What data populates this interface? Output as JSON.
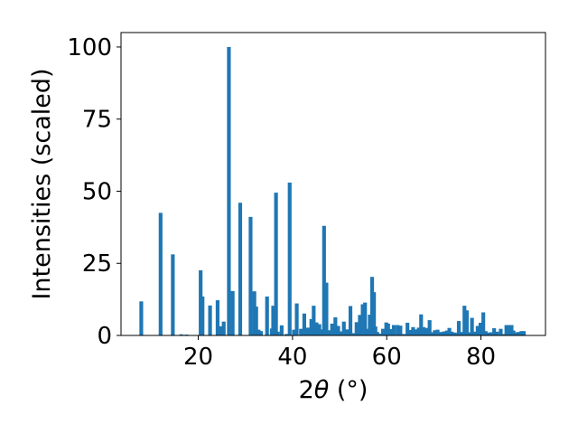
{
  "chart_data": {
    "type": "bar",
    "xlabel_prefix": "2",
    "xlabel_symbol": "θ",
    "xlabel_unit": " (°)",
    "ylabel": "Intensities (scaled)",
    "xlim": [
      3.6,
      93.7
    ],
    "ylim": [
      0,
      105
    ],
    "xticks": [
      20,
      40,
      60,
      80
    ],
    "yticks": [
      0,
      25,
      50,
      75,
      100
    ],
    "grid": false,
    "bar_color": "#1f77b4",
    "bar_width": 0.8,
    "x": [
      7.9,
      12.0,
      14.6,
      16.4,
      17.5,
      20.5,
      20.9,
      22.5,
      24.1,
      24.8,
      25.4,
      26.5,
      27.3,
      28.9,
      31.1,
      31.9,
      32.3,
      32.8,
      33.3,
      34.6,
      35.6,
      35.9,
      36.5,
      36.9,
      37.7,
      38.7,
      39.4,
      40.3,
      40.9,
      41.8,
      42.5,
      43.3,
      44.0,
      44.5,
      45.1,
      45.7,
      46.2,
      46.7,
      47.2,
      47.8,
      48.4,
      49.1,
      49.7,
      50.3,
      50.9,
      51.6,
      52.3,
      52.9,
      53.6,
      54.3,
      54.9,
      55.4,
      55.8,
      56.4,
      56.9,
      57.3,
      57.6,
      58.0,
      58.5,
      59.2,
      59.9,
      60.3,
      60.8,
      61.5,
      62.3,
      62.9,
      63.6,
      64.4,
      65.0,
      65.6,
      66.2,
      66.8,
      67.3,
      67.8,
      68.4,
      69.1,
      69.7,
      70.2,
      70.8,
      71.5,
      72.2,
      72.8,
      73.3,
      73.8,
      74.5,
      75.3,
      75.9,
      76.5,
      77.0,
      77.5,
      78.1,
      78.7,
      79.3,
      79.9,
      80.5,
      81.0,
      81.6,
      82.2,
      82.8,
      83.4,
      84.2,
      84.8,
      85.4,
      86.0,
      86.5,
      86.9,
      87.4,
      88.0,
      88.6,
      89.1
    ],
    "values": [
      11.8,
      42.5,
      28.1,
      0.4,
      0.3,
      22.6,
      13.5,
      10.4,
      12.2,
      3.2,
      4.8,
      100.0,
      15.4,
      46.0,
      41.1,
      15.3,
      10.0,
      2.0,
      1.5,
      13.5,
      2.4,
      10.3,
      49.5,
      1.3,
      3.5,
      0.5,
      53.0,
      2.0,
      11.1,
      2.3,
      7.6,
      2.7,
      5.7,
      10.3,
      4.5,
      3.9,
      2.1,
      38.0,
      18.3,
      1.8,
      4.1,
      6.3,
      3.3,
      1.4,
      4.8,
      2.1,
      10.2,
      0.8,
      4.6,
      7.1,
      10.8,
      11.4,
      2.3,
      7.2,
      20.3,
      15.0,
      3.1,
      1.2,
      0.6,
      2.3,
      4.5,
      4.1,
      2.2,
      3.6,
      3.6,
      3.4,
      0.5,
      4.4,
      1.9,
      2.9,
      2.1,
      2.7,
      7.3,
      2.9,
      2.6,
      5.3,
      1.1,
      1.8,
      2.0,
      1.2,
      1.4,
      1.7,
      2.6,
      1.3,
      1.0,
      5.0,
      1.2,
      10.3,
      8.7,
      1.1,
      6.1,
      1.3,
      3.3,
      4.4,
      8.0,
      1.5,
      1.0,
      1.1,
      2.5,
      1.3,
      2.3,
      0.5,
      3.6,
      3.6,
      3.6,
      1.7,
      1.1,
      1.2,
      1.5,
      1.5
    ]
  }
}
